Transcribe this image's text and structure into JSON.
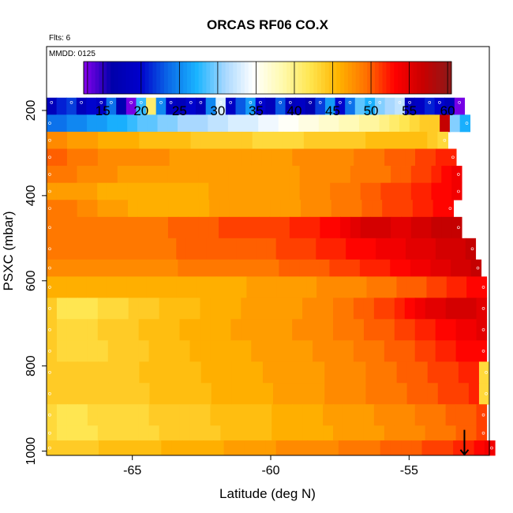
{
  "chart_data": {
    "type": "heatmap",
    "title": "ORCAS RF06 CO.X",
    "annotations": {
      "flights": "Flts: 6",
      "date": "MMDD: 0125"
    },
    "xlabel": "Latitude (deg N)",
    "ylabel": "PSXC (mbar)",
    "xlim": [
      -68.1,
      -52.1
    ],
    "ylim": [
      1010,
      50
    ],
    "y_reversed": true,
    "x_ticks": [
      -65,
      -60,
      -55
    ],
    "x_tick_labels": [
      "-65",
      "-60",
      "-55"
    ],
    "y_ticks": [
      200,
      400,
      600,
      800,
      1000
    ],
    "y_tick_labels": [
      "200",
      "400",
      "600",
      "800",
      "1000"
    ],
    "colorbar": {
      "range": [
        12.5,
        60.5
      ],
      "ticks": [
        15,
        20,
        25,
        30,
        35,
        40,
        45,
        50,
        55,
        60
      ],
      "tick_labels": [
        "15",
        "20",
        "25",
        "30",
        "35",
        "40",
        "45",
        "50",
        "55",
        "60"
      ],
      "gradient_colors": [
        "#8800ee",
        "#0000aa",
        "#0000cc",
        "#0a6ae8",
        "#1ab4ff",
        "#a8d8ff",
        "#ffffff",
        "#fffab0",
        "#ffe650",
        "#ffb400",
        "#ff7000",
        "#ff0000",
        "#c80000",
        "#8b1a1a"
      ],
      "boundaries": [
        12.5,
        13,
        15,
        20,
        25,
        30,
        35,
        40,
        45,
        50,
        55,
        60
      ]
    },
    "layers": [
      {
        "p_top": 170,
        "p_bottom": 210,
        "lat_start": -68.1,
        "lat_end": -53.0,
        "values": [
          18,
          21,
          22,
          18,
          20,
          19,
          24,
          17,
          13,
          28,
          41,
          25,
          19,
          18,
          20,
          18,
          25,
          33,
          19,
          23,
          26,
          20,
          18,
          23,
          18,
          19,
          17,
          22,
          26,
          20,
          24,
          29,
          27,
          30,
          31,
          32,
          18,
          19,
          21,
          20,
          18,
          13
        ]
      },
      {
        "p_top": 210,
        "p_bottom": 250,
        "lat_start": -68.1,
        "lat_end": -52.8,
        "values": [
          24,
          24,
          25,
          25,
          26,
          26,
          27,
          27,
          28,
          29,
          29,
          30,
          30,
          31,
          31,
          31,
          32,
          32,
          33,
          33,
          33,
          34,
          34,
          35,
          35,
          36,
          36,
          37,
          37,
          38,
          38,
          39,
          39,
          40,
          41,
          42,
          43,
          44,
          44,
          57,
          30,
          27
        ]
      },
      {
        "p_top": 250,
        "p_bottom": 290,
        "lat_start": -68.1,
        "lat_end": -53.6,
        "values": [
          48,
          48,
          47,
          47,
          47,
          46,
          46,
          46,
          46,
          45,
          45,
          45,
          45,
          45,
          44,
          44,
          44,
          44,
          44,
          44,
          43,
          43,
          43,
          43,
          43,
          44,
          44,
          44,
          44,
          44,
          44,
          45,
          45,
          45,
          45,
          45,
          45,
          44,
          43
        ]
      },
      {
        "p_top": 290,
        "p_bottom": 330,
        "lat_start": -68.1,
        "lat_end": -53.3,
        "values": [
          50,
          50,
          49,
          49,
          49,
          48,
          48,
          48,
          48,
          48,
          48,
          48,
          47,
          47,
          47,
          47,
          47,
          47,
          47,
          47,
          47,
          47,
          47,
          47,
          48,
          48,
          48,
          48,
          48,
          48,
          49,
          49,
          49,
          50,
          50,
          50,
          51,
          51,
          52,
          52
        ]
      },
      {
        "p_top": 330,
        "p_bottom": 370,
        "lat_start": -68.1,
        "lat_end": -53.1,
        "values": [
          49,
          49,
          49,
          48,
          48,
          48,
          48,
          47,
          47,
          47,
          47,
          47,
          47,
          47,
          47,
          47,
          47,
          47,
          47,
          47,
          47,
          47,
          47,
          47,
          47,
          48,
          48,
          48,
          48,
          48,
          49,
          49,
          49,
          49,
          50,
          50,
          51,
          51,
          52,
          53,
          54
        ]
      },
      {
        "p_top": 370,
        "p_bottom": 410,
        "lat_start": -68.1,
        "lat_end": -53.1,
        "values": [
          47,
          47,
          47,
          47,
          47,
          46,
          46,
          46,
          46,
          46,
          46,
          46,
          46,
          46,
          46,
          46,
          47,
          47,
          47,
          47,
          47,
          47,
          47,
          47,
          47,
          48,
          48,
          48,
          49,
          49,
          49,
          50,
          50,
          51,
          51,
          51,
          52,
          52,
          53,
          53,
          54
        ]
      },
      {
        "p_top": 410,
        "p_bottom": 450,
        "lat_start": -68.1,
        "lat_end": -53.4,
        "values": [
          49,
          49,
          49,
          48,
          48,
          47,
          47,
          47,
          46,
          46,
          46,
          46,
          46,
          46,
          46,
          46,
          47,
          47,
          47,
          47,
          47,
          47,
          47,
          47,
          47,
          48,
          48,
          48,
          49,
          49,
          49,
          50,
          50,
          51,
          51,
          51,
          52,
          52,
          53,
          53
        ]
      },
      {
        "p_top": 450,
        "p_bottom": 500,
        "lat_start": -68.1,
        "lat_end": -53.1,
        "values": [
          49,
          49,
          49,
          49,
          49,
          49,
          49,
          49,
          49,
          49,
          49,
          49,
          50,
          50,
          50,
          50,
          50,
          51,
          51,
          51,
          51,
          51,
          51,
          51,
          52,
          52,
          52,
          53,
          53,
          54,
          55,
          56,
          56,
          56,
          55,
          55,
          56,
          56,
          57,
          57,
          57
        ]
      },
      {
        "p_top": 500,
        "p_bottom": 550,
        "lat_start": -68.1,
        "lat_end": -52.6,
        "values": [
          49,
          49,
          49,
          49,
          49,
          49,
          49,
          49,
          49,
          49,
          49,
          49,
          49,
          50,
          50,
          50,
          50,
          50,
          50,
          50,
          50,
          50,
          50,
          51,
          51,
          51,
          51,
          52,
          52,
          52,
          53,
          53,
          53,
          54,
          54,
          54,
          55,
          55,
          55,
          56,
          56,
          56,
          57
        ]
      },
      {
        "p_top": 550,
        "p_bottom": 590,
        "lat_start": -68.1,
        "lat_end": -52.4,
        "values": [
          48,
          48,
          48,
          48,
          48,
          48,
          48,
          48,
          48,
          48,
          48,
          48,
          48,
          49,
          49,
          49,
          49,
          49,
          49,
          49,
          49,
          49,
          49,
          50,
          50,
          50,
          50,
          50,
          51,
          51,
          51,
          52,
          52,
          52,
          53,
          53,
          54,
          54,
          55,
          55,
          56,
          56,
          57
        ]
      },
      {
        "p_top": 590,
        "p_bottom": 640,
        "lat_start": -68.1,
        "lat_end": -52.2,
        "values": [
          46,
          46,
          46,
          46,
          46,
          46,
          46,
          46,
          46,
          46,
          46,
          46,
          46,
          46,
          46,
          46,
          46,
          46,
          46,
          46,
          47,
          47,
          47,
          47,
          47,
          47,
          47,
          48,
          48,
          48,
          48,
          48,
          49,
          49,
          49,
          50,
          50,
          50,
          51,
          51,
          52,
          52,
          53,
          53
        ]
      },
      {
        "p_top": 640,
        "p_bottom": 690,
        "lat_start": -68.1,
        "lat_end": -52.2,
        "values": [
          44,
          42,
          42,
          42,
          42,
          43,
          43,
          43,
          44,
          44,
          44,
          45,
          45,
          45,
          45,
          46,
          46,
          46,
          46,
          47,
          47,
          47,
          47,
          47,
          47,
          48,
          48,
          48,
          49,
          49,
          50,
          50,
          51,
          51,
          52,
          53,
          54,
          55,
          55,
          56,
          56,
          56,
          55
        ]
      },
      {
        "p_top": 690,
        "p_bottom": 740,
        "lat_start": -68.1,
        "lat_end": -52.2,
        "values": [
          44,
          43,
          43,
          43,
          43,
          44,
          44,
          44,
          44,
          45,
          45,
          45,
          45,
          46,
          46,
          46,
          46,
          46,
          47,
          47,
          47,
          47,
          47,
          47,
          48,
          48,
          48,
          48,
          49,
          49,
          49,
          50,
          50,
          50,
          51,
          51,
          52,
          52,
          53,
          53,
          54,
          54,
          55
        ]
      },
      {
        "p_top": 740,
        "p_bottom": 790,
        "lat_start": -68.1,
        "lat_end": -52.2,
        "values": [
          44,
          43,
          43,
          43,
          43,
          43,
          44,
          44,
          44,
          44,
          45,
          45,
          45,
          45,
          46,
          46,
          46,
          46,
          46,
          46,
          47,
          47,
          47,
          47,
          47,
          47,
          48,
          48,
          48,
          48,
          49,
          49,
          49,
          50,
          50,
          50,
          51,
          51,
          52,
          52,
          53,
          53,
          53
        ]
      },
      {
        "p_top": 790,
        "p_bottom": 840,
        "lat_start": -68.1,
        "lat_end": -52.1,
        "values": [
          44,
          44,
          44,
          44,
          44,
          44,
          44,
          44,
          44,
          45,
          45,
          45,
          45,
          45,
          45,
          46,
          46,
          46,
          46,
          46,
          46,
          47,
          47,
          47,
          47,
          47,
          47,
          48,
          48,
          48,
          48,
          49,
          49,
          49,
          50,
          50,
          50,
          51,
          51,
          51,
          52,
          52,
          43
        ]
      },
      {
        "p_top": 840,
        "p_bottom": 890,
        "lat_start": -68.1,
        "lat_end": -52.1,
        "values": [
          44,
          44,
          44,
          44,
          44,
          44,
          44,
          44,
          44,
          44,
          45,
          45,
          45,
          45,
          45,
          45,
          46,
          46,
          46,
          46,
          46,
          46,
          47,
          47,
          47,
          47,
          47,
          48,
          48,
          48,
          48,
          49,
          49,
          49,
          49,
          50,
          50,
          50,
          51,
          51,
          51,
          52,
          43
        ]
      },
      {
        "p_top": 890,
        "p_bottom": 940,
        "lat_start": -68.1,
        "lat_end": -52.2,
        "values": [
          43,
          42,
          42,
          42,
          43,
          43,
          43,
          43,
          43,
          43,
          44,
          44,
          44,
          44,
          44,
          44,
          45,
          45,
          45,
          45,
          45,
          45,
          46,
          46,
          46,
          46,
          46,
          47,
          47,
          47,
          47,
          47,
          48,
          48,
          48,
          48,
          49,
          49,
          49,
          50,
          50,
          50,
          51
        ]
      },
      {
        "p_top": 940,
        "p_bottom": 975,
        "lat_start": -68.1,
        "lat_end": -52.2,
        "values": [
          43,
          42,
          42,
          42,
          42,
          43,
          43,
          43,
          43,
          43,
          43,
          44,
          44,
          44,
          44,
          44,
          44,
          45,
          45,
          45,
          45,
          45,
          46,
          46,
          46,
          46,
          46,
          46,
          47,
          47,
          47,
          47,
          47,
          48,
          48,
          48,
          48,
          49,
          49,
          49,
          50,
          50,
          51
        ]
      },
      {
        "p_top": 975,
        "p_bottom": 1010,
        "lat_start": -68.1,
        "lat_end": -51.9,
        "values": [
          44,
          44,
          44,
          44,
          44,
          45,
          45,
          45,
          45,
          45,
          45,
          46,
          46,
          46,
          46,
          46,
          46,
          47,
          47,
          47,
          47,
          47,
          48,
          48,
          48,
          48,
          48,
          48,
          49,
          49,
          49,
          49,
          50,
          50,
          50,
          50,
          51,
          51,
          51,
          52,
          52,
          53,
          54
        ]
      }
    ],
    "arrow_marker": {
      "lat": -53.0,
      "p_from": 950,
      "p_to": 1008
    }
  }
}
